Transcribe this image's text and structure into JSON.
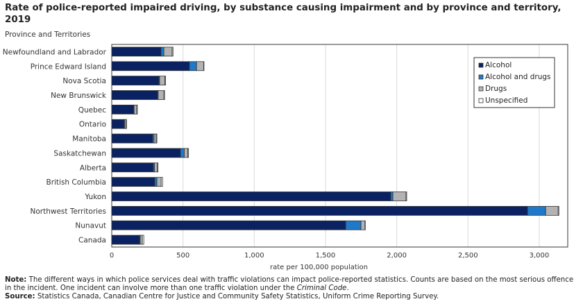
{
  "title": "Rate of police-reported impaired driving, by substance causing impairment and by province and territory, 2019",
  "note_label": "Note:",
  "note_text_1": " The different ways in which police services deal with traffic violations can impact police-reported statistics. Counts are based on the most serious offence in the incident. One incident can involve more than one traffic violation under the ",
  "note_italic": "Criminal Code",
  "note_text_2": ".",
  "source_label": "Source:",
  "source_text": " Statistics Canada, Canadian Centre for Justice and Community Safety Statistics, Uniform Crime Reporting Survey.",
  "colors": {
    "Alcohol": "#0b2262",
    "Alcohol and drugs": "#1f78c8",
    "Drugs": "#b3b3b3",
    "Unspecified": "#ffffff"
  },
  "chart_data": {
    "type": "bar",
    "orientation": "horizontal",
    "stacked": true,
    "title": "Rate of police-reported impaired driving, by substance causing impairment and by province and territory, 2019",
    "ylabel": "Province and Territories",
    "xlabel": "rate per 100,000 population",
    "xlim": [
      0,
      3200
    ],
    "xticks": [
      0,
      500,
      1000,
      1500,
      2000,
      2500,
      3000
    ],
    "xtick_labels": [
      "0",
      "500",
      "1,000",
      "1,500",
      "2,000",
      "2,500",
      "3,000"
    ],
    "grid": true,
    "legend_position": "top-right",
    "categories": [
      "Newfoundland and Labrador",
      "Prince Edward Island",
      "Nova Scotia",
      "New Brunswick",
      "Quebec",
      "Ontario",
      "Manitoba",
      "Saskatchewan",
      "Alberta",
      "British Columbia",
      "Yukon",
      "Northwest Territories",
      "Nunavut",
      "Canada"
    ],
    "series": [
      {
        "name": "Alcohol",
        "values": [
          346,
          545,
          331,
          321,
          155,
          86,
          287,
          482,
          292,
          302,
          1958,
          2918,
          1642,
          195
        ]
      },
      {
        "name": "Alcohol and drugs",
        "values": [
          20,
          50,
          5,
          5,
          2,
          5,
          10,
          27,
          8,
          15,
          15,
          127,
          107,
          5
        ]
      },
      {
        "name": "Drugs",
        "values": [
          58,
          50,
          37,
          40,
          18,
          8,
          15,
          25,
          20,
          30,
          92,
          88,
          28,
          15
        ]
      },
      {
        "name": "Unspecified",
        "values": [
          6,
          2,
          5,
          5,
          5,
          5,
          5,
          5,
          5,
          10,
          5,
          5,
          2,
          10
        ]
      }
    ]
  }
}
